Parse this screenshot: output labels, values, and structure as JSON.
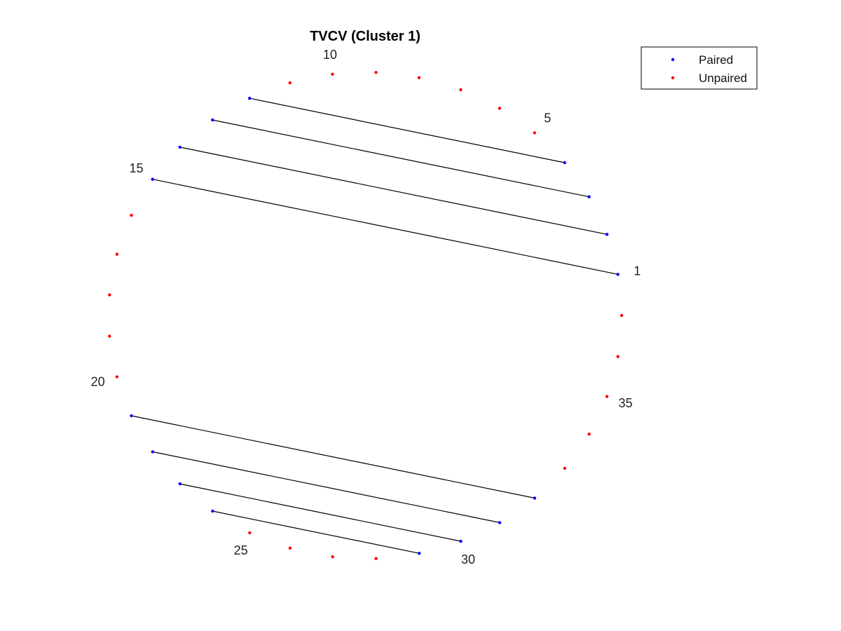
{
  "chart_data": {
    "type": "scatter",
    "subtype": "circular-arc-diagram",
    "title": "TVCV (Cluster 1)",
    "n_positions": 37,
    "labeled_positions": [
      {
        "index": 1,
        "text": "1"
      },
      {
        "index": 5,
        "text": "5"
      },
      {
        "index": 10,
        "text": "10"
      },
      {
        "index": 15,
        "text": "15"
      },
      {
        "index": 20,
        "text": "20"
      },
      {
        "index": 25,
        "text": "25"
      },
      {
        "index": 30,
        "text": "30"
      },
      {
        "index": 35,
        "text": "35"
      }
    ],
    "series": [
      {
        "name": "Paired",
        "color": "#0000ff",
        "positions": [
          1,
          2,
          3,
          4,
          12,
          13,
          14,
          15,
          21,
          22,
          23,
          24,
          29,
          30,
          31,
          32
        ]
      },
      {
        "name": "Unpaired",
        "color": "#ff0000",
        "positions": [
          5,
          6,
          7,
          8,
          9,
          10,
          11,
          16,
          17,
          18,
          19,
          20,
          25,
          26,
          27,
          28,
          33,
          34,
          35,
          36,
          37
        ]
      }
    ],
    "pairs": [
      [
        1,
        15
      ],
      [
        2,
        14
      ],
      [
        3,
        13
      ],
      [
        4,
        12
      ],
      [
        21,
        32
      ],
      [
        22,
        31
      ],
      [
        23,
        30
      ],
      [
        24,
        29
      ]
    ],
    "legend": {
      "placement": "top-right",
      "entries": [
        "Paired",
        "Unpaired"
      ]
    },
    "line_color": "#000000",
    "grid": false,
    "axes_visible": false
  }
}
